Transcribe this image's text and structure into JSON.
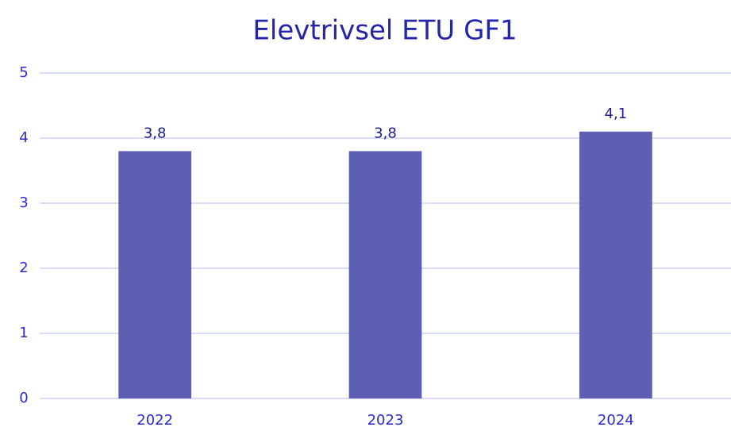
{
  "chart_data": {
    "type": "bar",
    "title": "Elevtrivsel ETU GF1",
    "categories": [
      "2022",
      "2023",
      "2024"
    ],
    "values": [
      3.8,
      3.8,
      4.1
    ],
    "value_labels": [
      "3,8",
      "3,8",
      "4,1"
    ],
    "color": "#5d5fb3",
    "ylim": [
      0,
      5
    ],
    "yticks": [
      0,
      1,
      2,
      3,
      4,
      5
    ],
    "grid": true
  }
}
